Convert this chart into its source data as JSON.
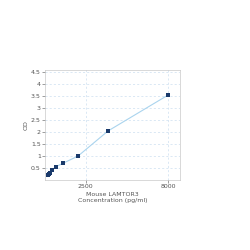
{
  "x_values": [
    0,
    62.5,
    125,
    250,
    500,
    1000,
    2000,
    4000,
    8000
  ],
  "y_values": [
    0.2,
    0.25,
    0.3,
    0.4,
    0.55,
    0.7,
    1.0,
    2.05,
    3.55
  ],
  "line_color": "#aad4ee",
  "marker_color": "#1a3a6b",
  "marker_size": 3.5,
  "xlabel_line1": "2500",
  "xlabel_line2": "Mouse LAMTOR3",
  "xlabel_line3": "Concentration (pg/ml)",
  "ylabel": "OD",
  "xlim": [
    -200,
    8800
  ],
  "ylim": [
    0.0,
    4.6
  ],
  "xticks": [
    2500,
    8000
  ],
  "xtick_labels": [
    "2500",
    "8000"
  ],
  "yticks": [
    0.5,
    1.0,
    1.5,
    2.0,
    2.5,
    3.0,
    3.5,
    4.0,
    4.5
  ],
  "ytick_labels": [
    "0.5",
    "1",
    "1.5",
    "2",
    "2.5",
    "3",
    "3.5",
    "4",
    "4.5"
  ],
  "grid_color": "#ccdff0",
  "background_color": "#ffffff",
  "label_fontsize": 4.5,
  "tick_fontsize": 4.5
}
